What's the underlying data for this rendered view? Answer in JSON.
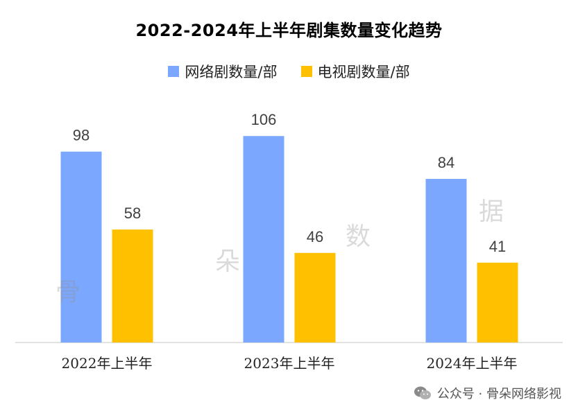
{
  "colors": {
    "net": "#7BA7FF",
    "tv": "#FFC000",
    "axis": "#D0D0D0",
    "label": "#404040"
  },
  "chart_data": {
    "type": "bar",
    "title": "2022-2024年上半年剧集数量变化趋势",
    "categories": [
      "2022年上半年",
      "2023年上半年",
      "2024年上半年"
    ],
    "series": [
      {
        "name": "网络剧数量/部",
        "values": [
          98,
          106,
          84
        ]
      },
      {
        "name": "电视剧数量/部",
        "values": [
          58,
          46,
          41
        ]
      }
    ],
    "ylim": [
      0,
      120
    ],
    "grid": false,
    "legend_position": "top-center",
    "xlabel": "",
    "ylabel": ""
  },
  "background_marks": [
    "骨",
    "朵",
    "数",
    "据"
  ],
  "footer": {
    "text": "公众号 · 骨朵网络影视",
    "icon": "wechat-icon"
  }
}
